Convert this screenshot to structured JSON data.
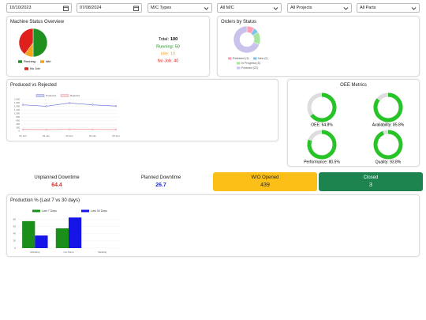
{
  "filters": {
    "start_date": "10/10/2023",
    "end_date": "07/08/2024",
    "machine_types": "M/C Types",
    "machines": "All M/C",
    "projects": "All Projects",
    "parts": "All Parts"
  },
  "machine_status": {
    "title": "Machine Status Overview",
    "chart_data": {
      "type": "pie",
      "categories": [
        "Running",
        "Idle",
        "No Job"
      ],
      "values": [
        50,
        10,
        40
      ],
      "colors": [
        "#1f8f1f",
        "#f5a31a",
        "#e0201c"
      ]
    },
    "summary": {
      "total_label": "Total:",
      "total": 100,
      "lines": [
        "Running: 50",
        "Idle: 10",
        "No Job: 40"
      ]
    }
  },
  "orders": {
    "title": "Orders by Status",
    "chart_data": {
      "type": "donut",
      "categories": [
        "Released (3)",
        "New (2)",
        "In Progress (5)",
        "Finished (22)"
      ],
      "values": [
        3,
        2,
        5,
        22
      ],
      "colors": [
        "#ffa0b4",
        "#80c0ee",
        "#a8e6a0",
        "#c9c2ec"
      ]
    }
  },
  "produced_vs_rejected": {
    "title": "Produced vs Rejected",
    "chart_data": {
      "type": "line",
      "categories": [
        "01 Jan",
        "02 Jan",
        "03 Jan",
        "04 Jan",
        "05 Jan"
      ],
      "series": [
        {
          "name": "Produced",
          "color": "#6a6fd8",
          "values": [
            1500,
            1420,
            1600,
            1500,
            1430
          ]
        },
        {
          "name": "Rejected",
          "color": "#e8828a",
          "values": [
            100,
            90,
            110,
            100,
            95
          ]
        }
      ],
      "ylim": [
        0,
        1800
      ],
      "yticks": [
        0,
        200,
        400,
        600,
        800,
        {
          "value": 1000,
          "label": "1,000"
        },
        {
          "value": 1200,
          "label": "1,200"
        },
        {
          "value": 1400,
          "label": "1,400"
        },
        {
          "value": 1600,
          "label": "1,600"
        },
        {
          "value": 1800,
          "label": "1,800"
        }
      ],
      "grid": true
    }
  },
  "oee": {
    "title": "OEE Metrics",
    "gauges": [
      {
        "label": "OEE: 64.8%",
        "value": 64.8
      },
      {
        "label": "Availability: 85.8%",
        "value": 85.8
      },
      {
        "label": "Performance: 80.5%",
        "value": 80.5
      },
      {
        "label": "Quality: 93.8%",
        "value": 93.8
      }
    ],
    "color": "#27c427",
    "track": "#dddddd"
  },
  "kpis": [
    {
      "title": "Unplanned Downtime",
      "value": 64.4
    },
    {
      "title": "Planned Downtime",
      "value": 26.7
    },
    {
      "title": "W/O Opened",
      "value": 439
    },
    {
      "title": "Closed",
      "value": 3
    }
  ],
  "production": {
    "title": "Production % (Last 7 vs 30 days)",
    "chart_data": {
      "type": "bar",
      "categories": [
        "Moulding",
        "Cut Piece",
        "Welding"
      ],
      "series": [
        {
          "name": "Last 7 Days",
          "color": "#1a8f1a",
          "values": [
            75,
            55,
            0
          ]
        },
        {
          "name": "Last 30 Days",
          "color": "#1515e8",
          "values": [
            35,
            85,
            0
          ]
        }
      ],
      "ylim": [
        0,
        90
      ],
      "yticks": [
        0,
        20,
        40,
        60,
        80
      ],
      "grid": true
    }
  }
}
